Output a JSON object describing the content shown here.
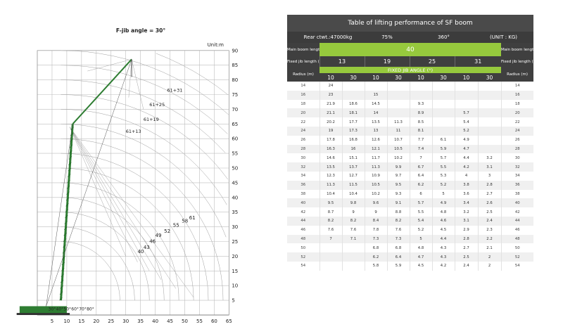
{
  "diagram": {
    "title": "F-jib angle = 30°",
    "unit_label": "Unit:m",
    "x_ticks": [
      5,
      10,
      15,
      20,
      25,
      30,
      35,
      40,
      45,
      50,
      55,
      60,
      65
    ],
    "y_ticks": [
      5,
      10,
      15,
      20,
      25,
      30,
      35,
      40,
      45,
      50,
      55,
      60,
      65,
      70,
      75,
      80,
      85,
      90
    ],
    "boom_lengths": [
      "40",
      "43",
      "46",
      "49",
      "52",
      "55",
      "58",
      "61"
    ],
    "jib_combos": [
      "61+31",
      "61+25",
      "61+19",
      "61+13"
    ],
    "angle_labels": [
      "30°",
      "40°",
      "50°",
      "60°",
      "70°",
      "80°"
    ]
  },
  "table": {
    "title": "Table of lifting performance of SF boom",
    "subheader": {
      "rear": "Rear ctwt.:47000kg",
      "percent": "75%",
      "rotation": "360°",
      "unit": "(UNIT : KG)"
    },
    "main_boom_label": "Main boom length (m)",
    "main_boom_value": "40",
    "fixed_jib_label": "Fixed jib length (m)",
    "fixed_jib_values": [
      "13",
      "19",
      "25",
      "31"
    ],
    "radius_label": "Radius (m)",
    "fixed_jib_angle_label": "FIXED JIB ANGLE (°)",
    "angles": [
      "10",
      "30",
      "10",
      "30",
      "10",
      "30",
      "10",
      "30"
    ],
    "rows": [
      [
        "14",
        "24",
        "",
        "",
        "",
        "",
        "",
        "",
        "",
        "14"
      ],
      [
        "16",
        "23",
        "",
        "15",
        "",
        "",
        "",
        "",
        "",
        "16"
      ],
      [
        "18",
        "21.9",
        "18.6",
        "14.5",
        "",
        "9.3",
        "",
        "",
        "",
        "18"
      ],
      [
        "20",
        "21.1",
        "18.1",
        "14",
        "",
        "8.9",
        "",
        "5.7",
        "",
        "20"
      ],
      [
        "22",
        "20.2",
        "17.7",
        "13.5",
        "11.3",
        "8.5",
        "",
        "5.4",
        "",
        "22"
      ],
      [
        "24",
        "19",
        "17.3",
        "13",
        "11",
        "8.1",
        "",
        "5.2",
        "",
        "24"
      ],
      [
        "26",
        "17.8",
        "16.8",
        "12.6",
        "10.7",
        "7.7",
        "6.1",
        "4.9",
        "",
        "26"
      ],
      [
        "28",
        "16.3",
        "16",
        "12.1",
        "10.5",
        "7.4",
        "5.9",
        "4.7",
        "",
        "28"
      ],
      [
        "30",
        "14.6",
        "15.1",
        "11.7",
        "10.2",
        "7",
        "5.7",
        "4.4",
        "3.2",
        "30"
      ],
      [
        "32",
        "13.5",
        "13.7",
        "11.3",
        "9.9",
        "6.7",
        "5.5",
        "4.2",
        "3.1",
        "32"
      ],
      [
        "34",
        "12.3",
        "12.7",
        "10.9",
        "9.7",
        "6.4",
        "5.3",
        "4",
        "3",
        "34"
      ],
      [
        "36",
        "11.3",
        "11.5",
        "10.5",
        "9.5",
        "6.2",
        "5.2",
        "3.8",
        "2.8",
        "36"
      ],
      [
        "38",
        "10.4",
        "10.4",
        "10.2",
        "9.3",
        "6",
        "5",
        "3.6",
        "2.7",
        "38"
      ],
      [
        "40",
        "9.5",
        "9.8",
        "9.6",
        "9.1",
        "5.7",
        "4.9",
        "3.4",
        "2.6",
        "40"
      ],
      [
        "42",
        "8.7",
        "9",
        "9",
        "8.8",
        "5.5",
        "4.8",
        "3.2",
        "2.5",
        "42"
      ],
      [
        "44",
        "8.2",
        "8.2",
        "8.4",
        "8.2",
        "5.4",
        "4.6",
        "3.1",
        "2.4",
        "44"
      ],
      [
        "46",
        "7.6",
        "7.6",
        "7.8",
        "7.6",
        "5.2",
        "4.5",
        "2.9",
        "2.3",
        "46"
      ],
      [
        "48",
        "7",
        "7.1",
        "7.3",
        "7.3",
        "5",
        "4.4",
        "2.8",
        "2.2",
        "48"
      ],
      [
        "50",
        "",
        "",
        "6.8",
        "6.8",
        "4.8",
        "4.3",
        "2.7",
        "2.1",
        "50"
      ],
      [
        "52",
        "",
        "",
        "6.2",
        "6.4",
        "4.7",
        "4.3",
        "2.5",
        "2",
        "52"
      ],
      [
        "54",
        "",
        "",
        "5.8",
        "5.9",
        "4.5",
        "4.2",
        "2.4",
        "2",
        "54"
      ]
    ]
  }
}
